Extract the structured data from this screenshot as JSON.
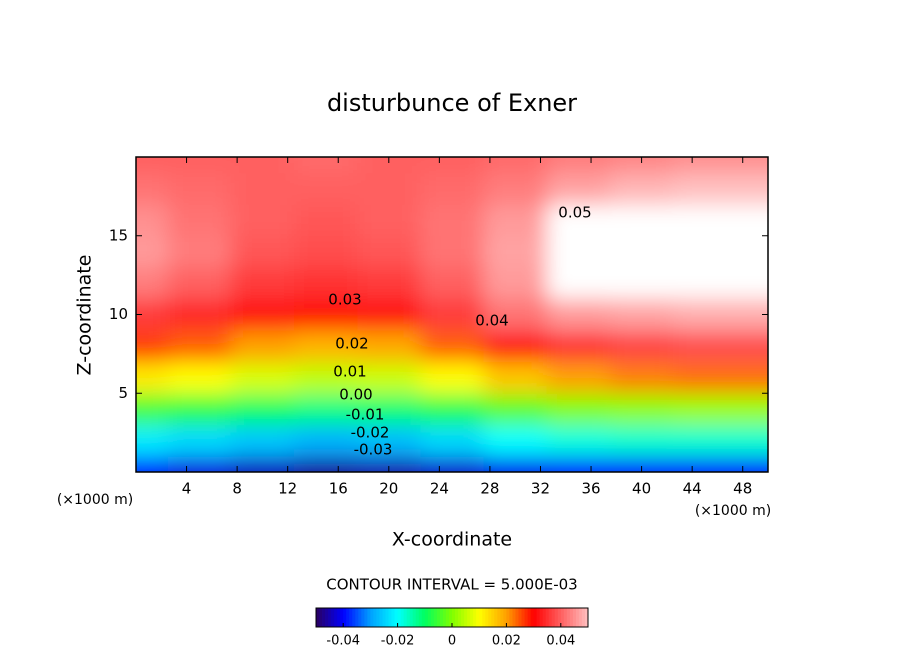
{
  "chart_data": {
    "type": "contour",
    "title": "disturbunce of Exner",
    "xlabel": "X-coordinate",
    "ylabel": "Z-coordinate",
    "unit_label": "(×1000 m)",
    "x": [
      0,
      5,
      10,
      15,
      20,
      25,
      30,
      35,
      40,
      45,
      50
    ],
    "y": [
      0,
      2,
      4,
      6,
      8,
      10,
      12,
      14,
      16,
      18,
      20
    ],
    "z": [
      [
        -0.04,
        -0.042,
        -0.044,
        -0.046,
        -0.045,
        -0.043,
        -0.041,
        -0.04,
        -0.04,
        -0.04,
        -0.04
      ],
      [
        -0.022,
        -0.024,
        -0.026,
        -0.028,
        -0.027,
        -0.024,
        -0.02,
        -0.018,
        -0.017,
        -0.017,
        -0.017
      ],
      [
        -0.005,
        -0.007,
        -0.01,
        -0.012,
        -0.011,
        -0.008,
        -0.003,
        0.0,
        0.001,
        0.002,
        0.002
      ],
      [
        0.012,
        0.01,
        0.007,
        0.005,
        0.006,
        0.01,
        0.016,
        0.02,
        0.022,
        0.023,
        0.023
      ],
      [
        0.026,
        0.024,
        0.02,
        0.018,
        0.019,
        0.024,
        0.031,
        0.035,
        0.037,
        0.038,
        0.038
      ],
      [
        0.036,
        0.034,
        0.031,
        0.029,
        0.031,
        0.036,
        0.042,
        0.046,
        0.047,
        0.048,
        0.048
      ],
      [
        0.043,
        0.04,
        0.036,
        0.035,
        0.036,
        0.04,
        0.046,
        0.052,
        0.054,
        0.055,
        0.055
      ],
      [
        0.046,
        0.043,
        0.039,
        0.038,
        0.039,
        0.042,
        0.047,
        0.053,
        0.056,
        0.057,
        0.057
      ],
      [
        0.045,
        0.042,
        0.04,
        0.039,
        0.04,
        0.042,
        0.046,
        0.052,
        0.055,
        0.056,
        0.056
      ],
      [
        0.042,
        0.041,
        0.04,
        0.04,
        0.04,
        0.041,
        0.043,
        0.047,
        0.049,
        0.05,
        0.05
      ],
      [
        0.04,
        0.04,
        0.04,
        0.041,
        0.04,
        0.04,
        0.041,
        0.043,
        0.044,
        0.045,
        0.045
      ]
    ],
    "xlim": [
      0,
      50
    ],
    "xticks": [
      4,
      8,
      12,
      16,
      20,
      24,
      28,
      32,
      36,
      40,
      44,
      48
    ],
    "ylim": [
      0,
      20
    ],
    "yticks": [
      5,
      10,
      15
    ],
    "clim": [
      -0.05,
      0.05
    ],
    "cticks": [
      -0.04,
      -0.02,
      0,
      0.02,
      0.04
    ],
    "colormap": [
      "#2a0060",
      "#0000ff",
      "#00a0ff",
      "#00ffff",
      "#00ff60",
      "#80ff00",
      "#ffff00",
      "#ffa000",
      "#ff0000",
      "#ff6060",
      "#ffc0c0"
    ],
    "above_color": "#ffffff",
    "contour_interval": {
      "value": 0.005,
      "label": "CONTOUR INTERVAL = 5.000E-03"
    },
    "contour_labels": [
      0.05,
      0.04,
      0.03,
      0.02,
      0.01,
      {
        "value": 0,
        "label": "0.00"
      },
      -0.01,
      -0.02,
      -0.03
    ]
  }
}
